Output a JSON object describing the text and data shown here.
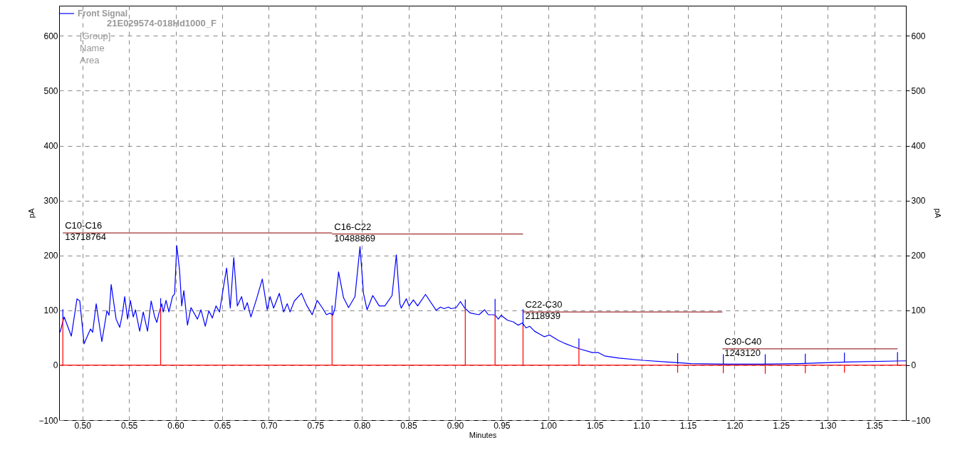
{
  "chart_data": {
    "type": "line",
    "xlabel": "Minutes",
    "ylabel": "pA",
    "y2label": "pA",
    "xlim": [
      0.475,
      1.384
    ],
    "ylim": [
      -100,
      655
    ],
    "y2lim": [
      -100,
      655
    ],
    "xticks": [
      {
        "value": 0.5,
        "label": "0.50"
      },
      {
        "value": 0.55,
        "label": "0.55"
      },
      {
        "value": 0.6,
        "label": "0.60"
      },
      {
        "value": 0.65,
        "label": "0.65"
      },
      {
        "value": 0.7,
        "label": "0.70"
      },
      {
        "value": 0.75,
        "label": "0.75"
      },
      {
        "value": 0.8,
        "label": "0.80"
      },
      {
        "value": 0.85,
        "label": "0.85"
      },
      {
        "value": 0.9,
        "label": "0.90"
      },
      {
        "value": 0.95,
        "label": "0.95"
      },
      {
        "value": 1.0,
        "label": "1.00"
      },
      {
        "value": 1.05,
        "label": "1.05"
      },
      {
        "value": 1.1,
        "label": "1.10"
      },
      {
        "value": 1.15,
        "label": "1.15"
      },
      {
        "value": 1.2,
        "label": "1.20"
      },
      {
        "value": 1.25,
        "label": "1.25"
      },
      {
        "value": 1.3,
        "label": "1.30"
      },
      {
        "value": 1.35,
        "label": "1.35"
      }
    ],
    "yticks": [
      -100,
      0,
      100,
      200,
      300,
      400,
      500,
      600
    ],
    "y2ticks": [
      -100,
      0,
      100,
      200,
      300,
      400,
      500,
      600
    ],
    "grid": true,
    "legend": "top left",
    "line_style": "solid",
    "marker": "none",
    "series": [
      {
        "name": "Front Signal",
        "color": "#0000ff",
        "x": [
          0.476,
          0.4804,
          0.4881,
          0.4942,
          0.4972,
          0.5018,
          0.5087,
          0.511,
          0.5148,
          0.5209,
          0.5263,
          0.5286,
          0.5309,
          0.5362,
          0.5401,
          0.5431,
          0.5454,
          0.5485,
          0.5515,
          0.5546,
          0.5569,
          0.5615,
          0.5653,
          0.5699,
          0.5738,
          0.5776,
          0.5799,
          0.5822,
          0.5852,
          0.5868,
          0.5898,
          0.5929,
          0.5967,
          0.599,
          0.6013,
          0.6043,
          0.6066,
          0.6089,
          0.6128,
          0.6166,
          0.6235,
          0.6273,
          0.6319,
          0.6357,
          0.6395,
          0.6434,
          0.6472,
          0.651,
          0.6548,
          0.6587,
          0.6625,
          0.6663,
          0.6709,
          0.674,
          0.677,
          0.6809,
          0.687,
          0.6931,
          0.6984,
          0.7015,
          0.7053,
          0.7114,
          0.716,
          0.7199,
          0.7229,
          0.7275,
          0.7352,
          0.7405,
          0.7467,
          0.752,
          0.7574,
          0.762,
          0.7658,
          0.7688,
          0.7711,
          0.775,
          0.7803,
          0.7857,
          0.7926,
          0.798,
          0.8018,
          0.8056,
          0.8117,
          0.8186,
          0.8247,
          0.8324,
          0.837,
          0.8408,
          0.8423,
          0.8477,
          0.8507,
          0.8553,
          0.8599,
          0.8683,
          0.8798,
          0.8844,
          0.8882,
          0.8928,
          0.8959,
          0.9012,
          0.9058,
          0.9104,
          0.9165,
          0.9257,
          0.9318,
          0.9357,
          0.941,
          0.9433,
          0.9464,
          0.9495,
          0.9563,
          0.9625,
          0.9678,
          0.9724,
          0.9762,
          0.9801,
          0.9854,
          0.9916,
          0.9957,
          1.0015,
          1.0112,
          1.0175,
          1.0267,
          1.0332,
          1.0474,
          1.054,
          1.0604,
          1.0757,
          1.1017,
          1.1277,
          1.1535,
          1.1924,
          1.231,
          1.27,
          1.3217,
          1.384
        ],
        "values": [
          60,
          88,
          53,
          121,
          117,
          39,
          66,
          60,
          112,
          43,
          99,
          91,
          147,
          84,
          69,
          95,
          125,
          84,
          118,
          88,
          101,
          62,
          97,
          62,
          117,
          88,
          78,
          95,
          112,
          97,
          118,
          97,
          125,
          130,
          218,
          173,
          108,
          136,
          73,
          105,
          84,
          101,
          71,
          99,
          86,
          108,
          97,
          138,
          177,
          104,
          196,
          108,
          125,
          101,
          114,
          88,
          121,
          157,
          101,
          125,
          104,
          131,
          97,
          112,
          97,
          117,
          131,
          110,
          92,
          118,
          105,
          92,
          95,
          91,
          104,
          170,
          123,
          105,
          125,
          216,
          130,
          101,
          127,
          108,
          108,
          127,
          201,
          112,
          104,
          121,
          108,
          119,
          108,
          129,
          100,
          106,
          103,
          106,
          103,
          105,
          116,
          104,
          95,
          92,
          101,
          92,
          92,
          91,
          84,
          91,
          82,
          79,
          73,
          77,
          68,
          71,
          62,
          56,
          52,
          55,
          45,
          40,
          34,
          30,
          23,
          23,
          17,
          13,
          9,
          6,
          3,
          2,
          2,
          3,
          6,
          8
        ]
      },
      {
        "color": "#ff0000",
        "x": [
          0.476,
          0.479,
          0.479,
          0.479,
          0.584,
          0.584,
          0.584,
          0.768,
          0.768,
          0.768,
          0.911,
          0.911,
          0.911,
          0.943,
          0.943,
          0.943,
          0.973,
          0.973,
          0.973,
          1.033,
          1.033,
          1.033,
          1.139,
          1.139,
          1.139,
          1.188,
          1.188,
          1.188,
          1.233,
          1.233,
          1.233,
          1.276,
          1.276,
          1.276,
          1.318,
          1.318,
          1.318,
          1.375,
          1.375,
          1.375,
          1.384
        ],
        "values": [
          0,
          0,
          85,
          0,
          0,
          105,
          0,
          0,
          92,
          0,
          0,
          104,
          0,
          0,
          92,
          0,
          0,
          72,
          0,
          0,
          32,
          0,
          0,
          -13,
          0,
          0,
          -14,
          0,
          0,
          -15,
          0,
          0,
          -14,
          0,
          0,
          -13,
          0,
          0,
          8,
          0,
          0
        ]
      },
      {
        "color": "#0000ff",
        "x": [
          0.479,
          0.479,
          null,
          0.584,
          0.584,
          null,
          0.768,
          0.768,
          null,
          0.911,
          0.911,
          null,
          0.943,
          0.943,
          null,
          0.973,
          0.973,
          null,
          1.033,
          1.033,
          null,
          1.139,
          1.139,
          null,
          1.188,
          1.188,
          null,
          1.233,
          1.233,
          null,
          1.276,
          1.276,
          null,
          1.318,
          1.318,
          null,
          1.375,
          1.375
        ],
        "values": [
          85,
          102,
          null,
          105,
          122,
          null,
          92,
          109,
          null,
          104,
          120,
          null,
          92,
          121,
          null,
          72,
          102,
          null,
          32,
          49,
          null,
          2,
          22,
          null,
          2,
          20,
          null,
          2,
          20,
          null,
          3,
          21,
          null,
          6,
          23,
          null,
          8,
          24
        ]
      },
      {
        "color": "#a03030",
        "x": [
          0.479,
          0.768,
          null,
          0.768,
          0.973,
          null,
          0.973,
          1.187,
          null,
          1.187,
          1.375
        ],
        "values": [
          241,
          241,
          null,
          239,
          239,
          null,
          97,
          97,
          null,
          30,
          30
        ]
      }
    ],
    "annotations": [
      "21E029574-018Hd1000_F",
      "[Group]",
      "Name",
      "Area",
      {
        "text": "C10-C16\n13718764",
        "x": 0.479,
        "y": 241
      },
      {
        "text": "C16-C22\n10488869",
        "x": 0.768,
        "y": 239
      },
      {
        "text": "C22-C30\n2118939",
        "x": 0.973,
        "y": 97
      },
      {
        "text": "C30-C40\n1243120",
        "x": 1.187,
        "y": 30
      }
    ]
  }
}
